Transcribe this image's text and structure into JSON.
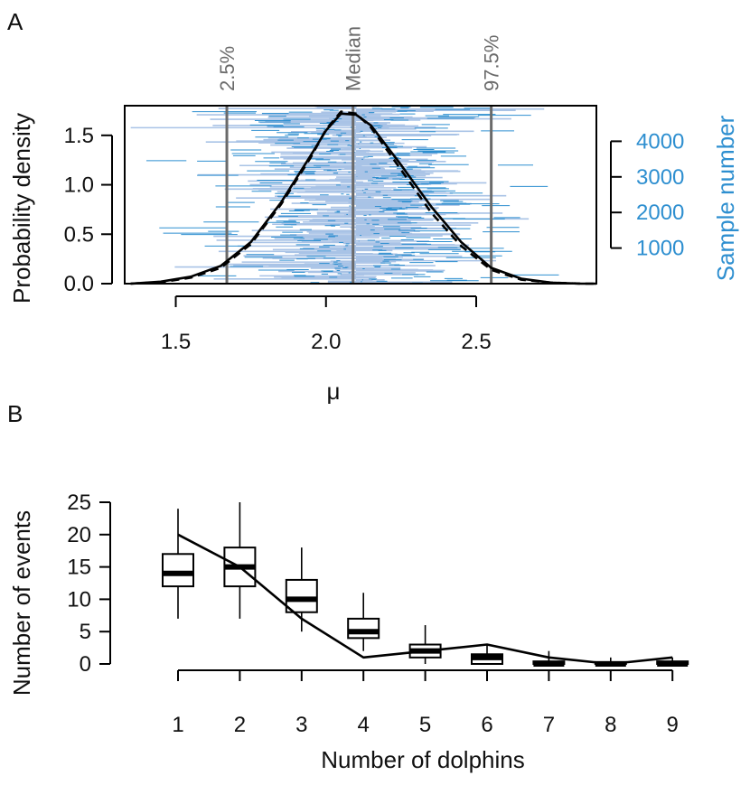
{
  "panels": {
    "a_label": "A",
    "b_label": "B"
  },
  "colors": {
    "trace_light": "#a9c3e6",
    "trace_dark": "#2e8fd0",
    "quantile_line": "#6a6a6a",
    "density_line": "#000000",
    "right_axis": "#2e8fd0"
  },
  "chart_data": [
    {
      "type": "line",
      "panel": "A",
      "xlabel": "μ",
      "ylabel": "Probability density",
      "ylabel_right": "Sample number",
      "xlim": [
        1.33,
        2.9
      ],
      "ylim": [
        0,
        1.8
      ],
      "ylim_right": [
        0,
        5000
      ],
      "xticks": [
        1.5,
        2.0,
        2.5
      ],
      "xtick_labels": [
        "1.5",
        "2.0",
        "2.5"
      ],
      "yticks": [
        0.0,
        0.5,
        1.0,
        1.5
      ],
      "ytick_labels": [
        "0.0",
        "0.5",
        "1.0",
        "1.5"
      ],
      "yticks_right": [
        1000,
        2000,
        3000,
        4000
      ],
      "ytick_labels_right": [
        "1000",
        "2000",
        "3000",
        "4000"
      ],
      "quantiles": [
        {
          "label": "2.5%",
          "x": 1.67
        },
        {
          "label": "Median",
          "x": 2.09
        },
        {
          "label": "97.5%",
          "x": 2.55
        }
      ],
      "series": [
        {
          "style": "solid",
          "x": [
            1.35,
            1.45,
            1.55,
            1.65,
            1.75,
            1.85,
            1.95,
            2.0,
            2.05,
            2.1,
            2.15,
            2.25,
            2.35,
            2.45,
            2.55,
            2.65,
            2.75,
            2.85,
            2.9
          ],
          "y": [
            0.0,
            0.02,
            0.07,
            0.18,
            0.42,
            0.82,
            1.3,
            1.55,
            1.72,
            1.71,
            1.6,
            1.2,
            0.78,
            0.42,
            0.16,
            0.05,
            0.01,
            0.0,
            0.0
          ]
        },
        {
          "style": "dashed",
          "x": [
            1.35,
            1.45,
            1.55,
            1.65,
            1.75,
            1.85,
            1.95,
            2.0,
            2.05,
            2.1,
            2.15,
            2.25,
            2.35,
            2.45,
            2.55,
            2.65,
            2.75,
            2.85,
            2.9
          ],
          "y": [
            0.0,
            0.015,
            0.06,
            0.16,
            0.4,
            0.8,
            1.28,
            1.56,
            1.74,
            1.72,
            1.58,
            1.15,
            0.72,
            0.38,
            0.14,
            0.04,
            0.01,
            0.0,
            0.0
          ]
        }
      ],
      "trace": {
        "samples": 5000,
        "mean": 2.1,
        "sd": 0.23,
        "note_visible": false
      }
    },
    {
      "type": "box",
      "panel": "B",
      "xlabel": "Number of dolphins",
      "ylabel": "Number of events",
      "categories": [
        "1",
        "2",
        "3",
        "4",
        "5",
        "6",
        "7",
        "8",
        "9"
      ],
      "ylim": [
        0,
        25
      ],
      "yticks": [
        0,
        5,
        10,
        15,
        20,
        25
      ],
      "ytick_labels": [
        "0",
        "5",
        "10",
        "15",
        "20",
        "25"
      ],
      "boxes": [
        {
          "min": 7,
          "q1": 12,
          "median": 14,
          "q3": 17,
          "max": 24
        },
        {
          "min": 7,
          "q1": 12,
          "median": 15,
          "q3": 18,
          "max": 25
        },
        {
          "min": 5,
          "q1": 8,
          "median": 10,
          "q3": 13,
          "max": 18
        },
        {
          "min": 2,
          "q1": 4,
          "median": 5,
          "q3": 7,
          "max": 11
        },
        {
          "min": 0,
          "q1": 1,
          "median": 2,
          "q3": 3,
          "max": 6
        },
        {
          "min": 0,
          "q1": 0,
          "median": 1,
          "q3": 1.5,
          "max": 3
        },
        {
          "min": 0,
          "q1": 0,
          "median": 0,
          "q3": 0.4,
          "max": 2
        },
        {
          "min": 0,
          "q1": 0,
          "median": 0,
          "q3": 0.3,
          "max": 1
        },
        {
          "min": 0,
          "q1": 0,
          "median": 0,
          "q3": 0.4,
          "max": 1
        }
      ],
      "observed": [
        20,
        15,
        7,
        1,
        2,
        3,
        1,
        0,
        1
      ]
    }
  ]
}
